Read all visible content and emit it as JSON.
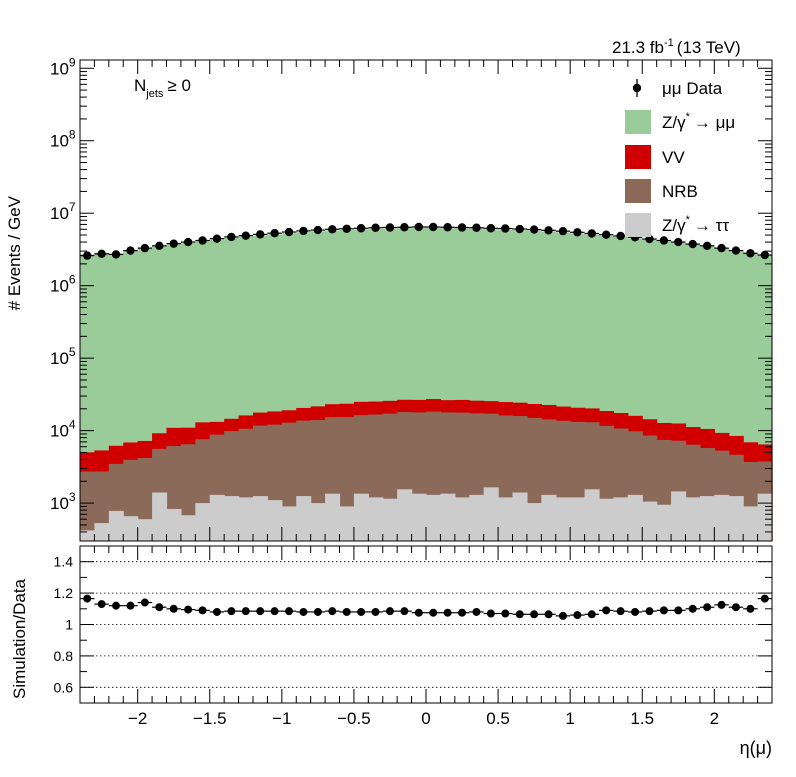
{
  "chart_data": [
    {
      "type": "area",
      "panel": "main",
      "stacked": true,
      "log_y": true,
      "ylabel": "# Events / GeV",
      "ylim": [
        300,
        1300000000
      ],
      "ytick_exponents": [
        "10^3",
        "10^4",
        "10^5",
        "10^6",
        "10^7",
        "10^8",
        "10^9"
      ],
      "xlim": [
        -2.4,
        2.4
      ],
      "lumi_label": "21.3 fb",
      "lumi_sup": "-1",
      "energy_label": "(13 TeV)",
      "jets_label_main": "N",
      "jets_label_sub": "jets",
      "jets_label_tail": "≥ 0",
      "legend_position": "top-right",
      "bins": 48,
      "series": [
        {
          "name": "Z/γ* → ττ",
          "label_main": "Z/γ",
          "label_sup": "*",
          "label_tail": "→ ττ",
          "color": "#cccccc",
          "values": [
            420,
            530,
            780,
            660,
            600,
            1400,
            830,
            680,
            1000,
            1300,
            1250,
            1200,
            1250,
            1100,
            900,
            1250,
            1000,
            1350,
            900,
            1350,
            1200,
            1150,
            1550,
            1350,
            1300,
            1350,
            1200,
            1300,
            1650,
            1200,
            1400,
            1000,
            1300,
            1200,
            1200,
            1550,
            1150,
            1200,
            1300,
            1050,
            950,
            1450,
            1200,
            1250,
            1300,
            1250,
            900,
            1350
          ]
        },
        {
          "name": "NRB",
          "label_main": "NRB",
          "color": "#8b6a5a",
          "values": [
            2300,
            2200,
            2700,
            3300,
            3600,
            4200,
            5300,
            5800,
            6600,
            7500,
            8600,
            9400,
            10500,
            11000,
            12000,
            12500,
            13000,
            14000,
            14500,
            15000,
            15500,
            16000,
            16500,
            16500,
            17000,
            16500,
            16500,
            16000,
            15500,
            15000,
            14500,
            14000,
            13000,
            12500,
            12000,
            11500,
            10500,
            9500,
            8500,
            7500,
            6500,
            5800,
            5200,
            4500,
            4000,
            3400,
            2800,
            2400
          ]
        },
        {
          "name": "VV",
          "label_main": "VV",
          "color": "#d00000",
          "values": [
            2300,
            2600,
            2700,
            2900,
            3000,
            3600,
            4800,
            4500,
            5400,
            4400,
            4700,
            5600,
            6000,
            6300,
            6200,
            6800,
            7600,
            7800,
            8100,
            8600,
            8500,
            8600,
            8600,
            8700,
            9000,
            8500,
            8800,
            8600,
            8400,
            8600,
            8400,
            8300,
            8300,
            7800,
            7500,
            7200,
            7000,
            6800,
            6200,
            5800,
            5300,
            5300,
            4800,
            4800,
            4000,
            3800,
            3200,
            2700
          ]
        },
        {
          "name": "Z/γ* → μμ",
          "label_main": "Z/γ",
          "label_sup": "*",
          "label_tail": "→ μμ",
          "color": "#99cc99",
          "values": [
            2700000,
            2820000,
            2750000,
            3050000,
            3300000,
            3500000,
            3700000,
            3900000,
            4100000,
            4300000,
            4550000,
            4750000,
            4900000,
            5100000,
            5300000,
            5450000,
            5600000,
            5750000,
            5850000,
            5950000,
            6050000,
            6100000,
            6200000,
            6250000,
            6250000,
            6200000,
            6150000,
            6100000,
            6000000,
            5900000,
            5800000,
            5700000,
            5550000,
            5400000,
            5200000,
            5050000,
            4850000,
            4700000,
            4500000,
            4300000,
            4100000,
            3900000,
            3700000,
            3500000,
            3300000,
            3050000,
            2800000,
            2600000
          ]
        }
      ],
      "data_series": {
        "name": "μμ Data",
        "label_main": "μμ Data",
        "color": "#000000",
        "x": [
          -2.35,
          -2.25,
          -2.15,
          -2.05,
          -1.95,
          -1.85,
          -1.75,
          -1.65,
          -1.55,
          -1.45,
          -1.35,
          -1.25,
          -1.15,
          -1.05,
          -0.95,
          -0.85,
          -0.75,
          -0.65,
          -0.55,
          -0.45,
          -0.35,
          -0.25,
          -0.15,
          -0.05,
          0.05,
          0.15,
          0.25,
          0.35,
          0.45,
          0.55,
          0.65,
          0.75,
          0.85,
          0.95,
          1.05,
          1.15,
          1.25,
          1.35,
          1.45,
          1.55,
          1.65,
          1.75,
          1.85,
          1.95,
          2.05,
          2.15,
          2.25,
          2.35
        ],
        "values": [
          2600000,
          2750000,
          2700000,
          3050000,
          3300000,
          3550000,
          3800000,
          4000000,
          4200000,
          4450000,
          4700000,
          4900000,
          5100000,
          5300000,
          5500000,
          5700000,
          5850000,
          6000000,
          6100000,
          6200000,
          6300000,
          6350000,
          6400000,
          6450000,
          6450000,
          6400000,
          6350000,
          6300000,
          6200000,
          6150000,
          6050000,
          5950000,
          5800000,
          5650000,
          5450000,
          5250000,
          5050000,
          4850000,
          4650000,
          4400000,
          4200000,
          4000000,
          3750000,
          3550000,
          3300000,
          3050000,
          2800000,
          2650000
        ]
      }
    },
    {
      "type": "scatter",
      "panel": "ratio",
      "ylabel": "Simulation/Data",
      "xlabel": "η(μ)",
      "ylim": [
        0.5,
        1.5
      ],
      "yticks": [
        0.6,
        0.8,
        1,
        1.2,
        1.4
      ],
      "ytick_labels": [
        "0.6",
        "0.8",
        "1",
        "1.2",
        "1.4"
      ],
      "xlim": [
        -2.4,
        2.4
      ],
      "xticks": [
        -2,
        -1.5,
        -1,
        -0.5,
        0,
        0.5,
        1,
        1.5,
        2
      ],
      "xtick_labels": [
        "−2",
        "−1.5",
        "−1",
        "−0.5",
        "0",
        "0.5",
        "1",
        "1.5",
        "2"
      ],
      "grid_y": true,
      "x": [
        -2.35,
        -2.25,
        -2.15,
        -2.05,
        -1.95,
        -1.85,
        -1.75,
        -1.65,
        -1.55,
        -1.45,
        -1.35,
        -1.25,
        -1.15,
        -1.05,
        -0.95,
        -0.85,
        -0.75,
        -0.65,
        -0.55,
        -0.45,
        -0.35,
        -0.25,
        -0.15,
        -0.05,
        0.05,
        0.15,
        0.25,
        0.35,
        0.45,
        0.55,
        0.65,
        0.75,
        0.85,
        0.95,
        1.05,
        1.15,
        1.25,
        1.35,
        1.45,
        1.55,
        1.65,
        1.75,
        1.85,
        1.95,
        2.05,
        2.15,
        2.25,
        2.35
      ],
      "values": [
        1.165,
        1.13,
        1.12,
        1.12,
        1.14,
        1.11,
        1.1,
        1.095,
        1.09,
        1.08,
        1.085,
        1.085,
        1.085,
        1.085,
        1.085,
        1.08,
        1.08,
        1.085,
        1.08,
        1.08,
        1.08,
        1.085,
        1.085,
        1.075,
        1.075,
        1.075,
        1.075,
        1.08,
        1.07,
        1.07,
        1.065,
        1.065,
        1.065,
        1.055,
        1.06,
        1.065,
        1.09,
        1.085,
        1.08,
        1.085,
        1.09,
        1.09,
        1.1,
        1.11,
        1.125,
        1.11,
        1.1,
        1.165
      ]
    }
  ]
}
